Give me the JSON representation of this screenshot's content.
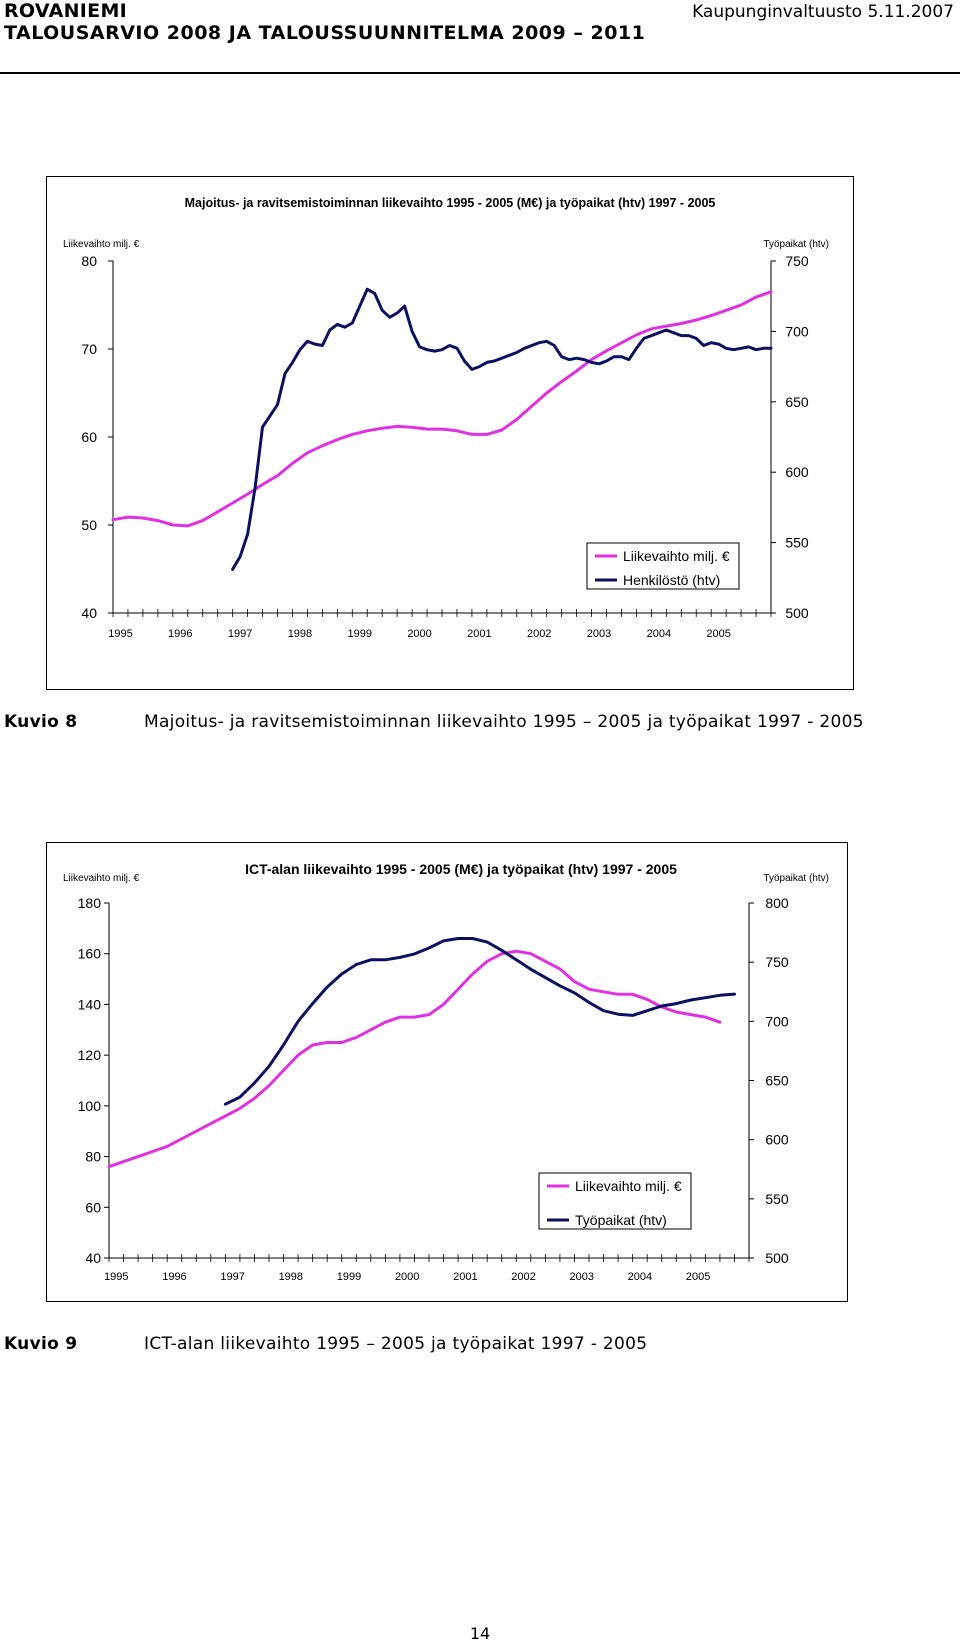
{
  "header": {
    "city": "ROVANIEMI",
    "doc_title": "TALOUSARVIO 2008 JA TALOUSSUUNNITELMA 2009 – 2011",
    "meeting": "Kaupunginvaltuusto 5.11.2007"
  },
  "figures": [
    {
      "label": "Kuvio 8",
      "caption": "Majoitus- ja ravitsemistoiminnan liikevaihto 1995 – 2005 ja työpaikat 1997 - 2005"
    },
    {
      "label": "Kuvio 9",
      "caption": "ICT-alan liikevaihto 1995 – 2005 ja työpaikat 1997 - 2005"
    }
  ],
  "page_number": "14",
  "colors": {
    "series1": "#e030e0",
    "series2": "#0a1060"
  },
  "chart_data": [
    {
      "type": "line",
      "title": "Majoitus- ja ravitsemistoiminnan liikevaihto 1995 - 2005 (M€) ja työpaikat (htv) 1997 - 2005",
      "ylabel": "Liikevaihto milj. €",
      "y2label": "Työpaikat (htv)",
      "ylim": [
        40,
        80
      ],
      "y2lim": [
        500,
        750
      ],
      "yticks": [
        "40",
        "50",
        "60",
        "70",
        "80"
      ],
      "y2ticks": [
        "500",
        "550",
        "600",
        "650",
        "700",
        "750"
      ],
      "categories": [
        "1995",
        "1996",
        "1997",
        "1998",
        "1999",
        "2000",
        "2001",
        "2002",
        "2003",
        "2004",
        "2005"
      ],
      "series": [
        {
          "name": "Liikevaihto milj. €",
          "axis": "left",
          "x": [
            1995.0,
            1995.25,
            1995.5,
            1995.75,
            1996.0,
            1996.25,
            1996.5,
            1996.75,
            1997.0,
            1997.25,
            1997.5,
            1997.75,
            1998.0,
            1998.25,
            1998.5,
            1998.75,
            1999.0,
            1999.25,
            1999.5,
            1999.75,
            2000.0,
            2000.25,
            2000.5,
            2000.75,
            2001.0,
            2001.25,
            2001.5,
            2001.75,
            2002.0,
            2002.25,
            2002.5,
            2002.75,
            2003.0,
            2003.25,
            2003.5,
            2003.75,
            2004.0,
            2004.25,
            2004.5,
            2004.75,
            2005.0,
            2005.25,
            2005.5,
            2005.75,
            2006.0
          ],
          "values": [
            50.6,
            50.9,
            50.8,
            50.5,
            50.0,
            49.9,
            50.5,
            51.5,
            52.5,
            53.5,
            54.6,
            55.6,
            57.0,
            58.2,
            59.0,
            59.7,
            60.3,
            60.7,
            61.0,
            61.2,
            61.1,
            60.9,
            60.9,
            60.7,
            60.3,
            60.3,
            60.8,
            62.0,
            63.5,
            65.0,
            66.3,
            67.5,
            68.8,
            69.8,
            70.7,
            71.6,
            72.3,
            72.6,
            72.9,
            73.3,
            73.8,
            74.4,
            75.0,
            75.9,
            76.5
          ]
        },
        {
          "name": "Henkilöstö (htv)",
          "axis": "right",
          "x": [
            1997.0,
            1997.125,
            1997.25,
            1997.375,
            1997.5,
            1997.625,
            1997.75,
            1997.875,
            1998.0,
            1998.125,
            1998.25,
            1998.375,
            1998.5,
            1998.625,
            1998.75,
            1998.875,
            1999.0,
            1999.125,
            1999.25,
            1999.375,
            1999.5,
            1999.625,
            1999.75,
            1999.875,
            2000.0,
            2000.125,
            2000.25,
            2000.375,
            2000.5,
            2000.625,
            2000.75,
            2000.875,
            2001.0,
            2001.125,
            2001.25,
            2001.375,
            2001.5,
            2001.625,
            2001.75,
            2001.875,
            2002.0,
            2002.125,
            2002.25,
            2002.375,
            2002.5,
            2002.625,
            2002.75,
            2002.875,
            2003.0,
            2003.125,
            2003.25,
            2003.375,
            2003.5,
            2003.625,
            2003.75,
            2003.875,
            2004.0,
            2004.125,
            2004.25,
            2004.375,
            2004.5,
            2004.625,
            2004.75,
            2004.875,
            2005.0,
            2005.125,
            2005.25,
            2005.375,
            2005.5,
            2005.625,
            2005.75,
            2005.875,
            2006.0
          ],
          "values": [
            531,
            540,
            556,
            589,
            632,
            640,
            648,
            670,
            678,
            687,
            693,
            691,
            690,
            701,
            705,
            703,
            706,
            718,
            730,
            727,
            715,
            710,
            713,
            718,
            700,
            689,
            687,
            686,
            687,
            690,
            688,
            679,
            673,
            675,
            678,
            679,
            681,
            683,
            685,
            688,
            690,
            692,
            693,
            690,
            682,
            680,
            681,
            680,
            678,
            677,
            679,
            682,
            682,
            680,
            688,
            695,
            697,
            699,
            701,
            699,
            697,
            697,
            695,
            690,
            692,
            691,
            688,
            687,
            688,
            689,
            687,
            688,
            688
          ]
        }
      ],
      "legend": "lower-right"
    },
    {
      "type": "line",
      "title": "ICT-alan liikevaihto 1995 - 2005 (M€) ja työpaikat (htv) 1997 - 2005",
      "ylabel": "Liikevaihto milj. €",
      "y2label": "Työpaikat (htv)",
      "ylim": [
        40,
        180
      ],
      "y2lim": [
        500,
        800
      ],
      "yticks": [
        "40",
        "60",
        "80",
        "100",
        "120",
        "140",
        "160",
        "180"
      ],
      "y2ticks": [
        "500",
        "550",
        "600",
        "650",
        "700",
        "750",
        "800"
      ],
      "categories": [
        "1995",
        "1996",
        "1997",
        "1998",
        "1999",
        "2000",
        "2001",
        "2002",
        "2003",
        "2004",
        "2005"
      ],
      "series": [
        {
          "name": "Liikevaihto milj. €",
          "axis": "left",
          "x": [
            1995.0,
            1995.25,
            1995.5,
            1995.75,
            1996.0,
            1996.25,
            1996.5,
            1996.75,
            1997.0,
            1997.25,
            1997.5,
            1997.75,
            1998.0,
            1998.25,
            1998.5,
            1998.75,
            1999.0,
            1999.25,
            1999.5,
            1999.75,
            2000.0,
            2000.25,
            2000.5,
            2000.75,
            2001.0,
            2001.25,
            2001.5,
            2001.75,
            2002.0,
            2002.25,
            2002.5,
            2002.75,
            2003.0,
            2003.25,
            2003.5,
            2003.75,
            2004.0,
            2004.25,
            2004.5,
            2004.75,
            2005.0,
            2005.25,
            2005.5
          ],
          "values": [
            76,
            78,
            80,
            82,
            84,
            87,
            90,
            93,
            96,
            99,
            103,
            108,
            114,
            120,
            124,
            125,
            125,
            127,
            130,
            133,
            135,
            135,
            136,
            140,
            146,
            152,
            157,
            160,
            161,
            160,
            157,
            154,
            149,
            146,
            145,
            144,
            144,
            142,
            139,
            137,
            136,
            135,
            133
          ]
        },
        {
          "name": "Työpaikat (htv)",
          "axis": "right",
          "x": [
            1997.0,
            1997.25,
            1997.5,
            1997.75,
            1998.0,
            1998.25,
            1998.5,
            1998.75,
            1999.0,
            1999.25,
            1999.5,
            1999.75,
            2000.0,
            2000.25,
            2000.5,
            2000.75,
            2001.0,
            2001.25,
            2001.5,
            2001.75,
            2002.0,
            2002.25,
            2002.5,
            2002.75,
            2003.0,
            2003.25,
            2003.5,
            2003.75,
            2004.0,
            2004.25,
            2004.5,
            2004.75,
            2005.0,
            2005.25,
            2005.5,
            2005.75
          ],
          "values": [
            630,
            636,
            648,
            662,
            680,
            700,
            715,
            729,
            740,
            748,
            752,
            752,
            754,
            757,
            762,
            768,
            770,
            770,
            767,
            760,
            752,
            744,
            737,
            730,
            724,
            716,
            709,
            706,
            705,
            709,
            713,
            715,
            718,
            720,
            722,
            723
          ]
        }
      ],
      "legend": "lower-right"
    }
  ]
}
